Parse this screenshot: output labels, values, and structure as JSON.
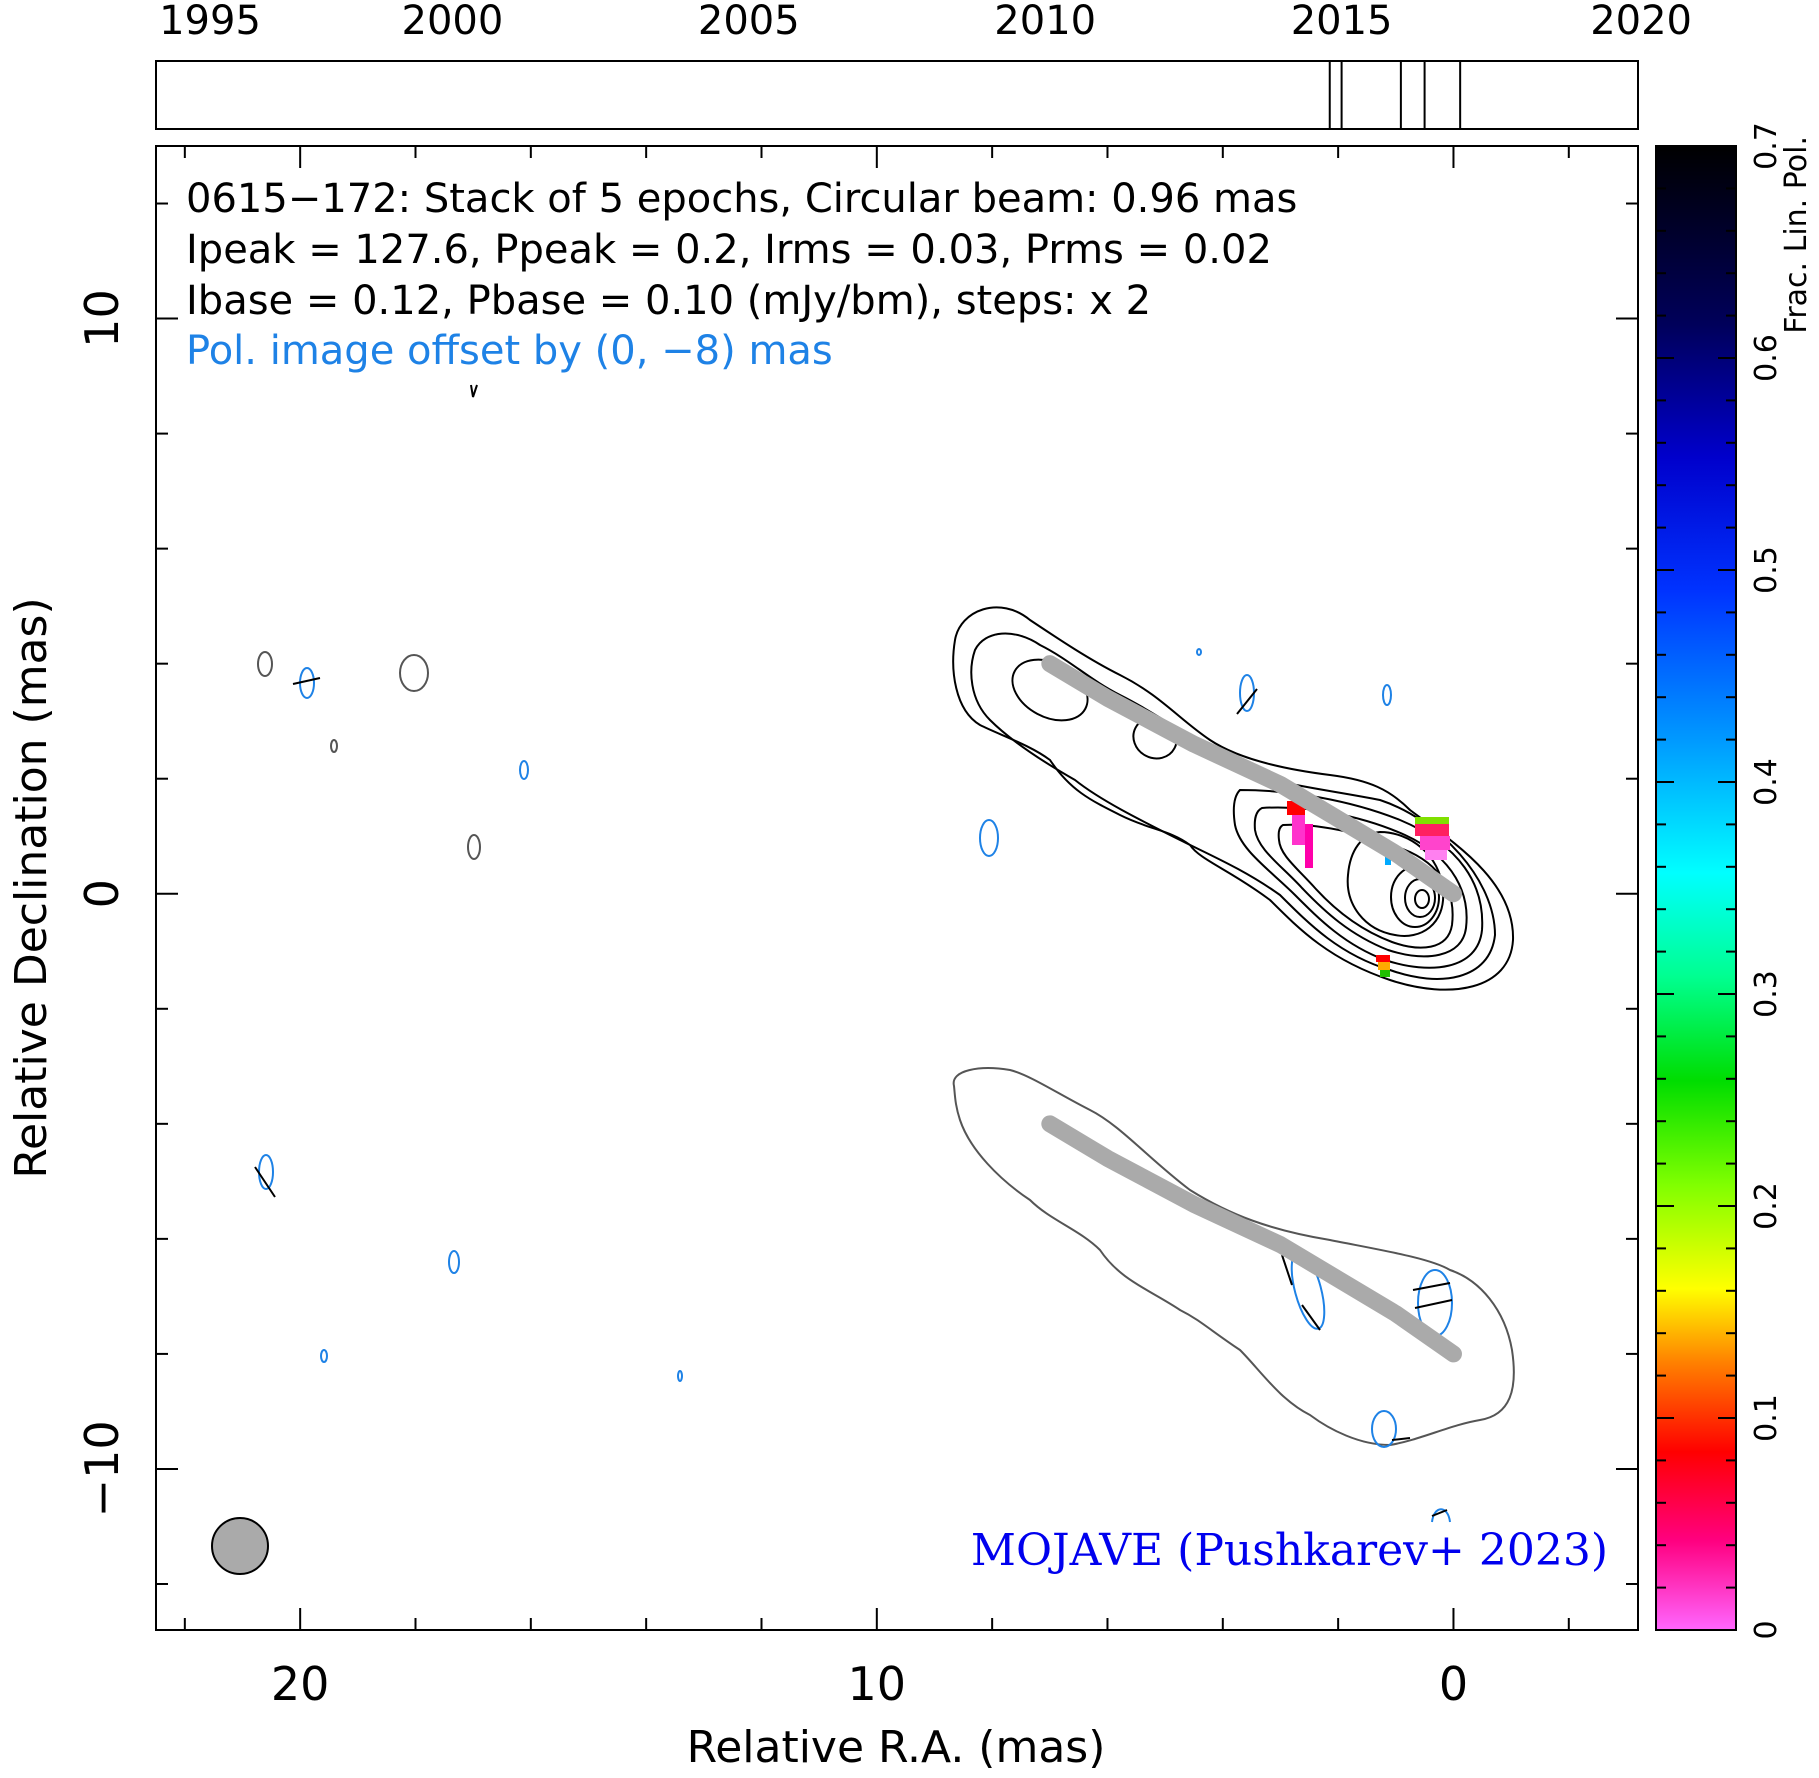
{
  "chart_data": {
    "type": "contour",
    "source": "0615−172",
    "header_lines": [
      "0615−172: Stack of 5 epochs, Circular beam: 0.96 mas",
      "Ipeak = 127.6, Ppeak = 0.2, Irms = 0.03, Prms = 0.02",
      "Ibase = 0.12, Pbase = 0.10 (mJy/bm), steps: x 2"
    ],
    "offset_note": "Pol. image offset by (0, −8) mas",
    "credit": "MOJAVE (Pushkarev+ 2023)",
    "xlabel": "Relative R.A. (mas)",
    "ylabel": "Relative Declination (mas)",
    "xlim": [
      22.5,
      -3.2
    ],
    "ylim": [
      -12.8,
      13.0
    ],
    "x_ticks": [
      20,
      10,
      0
    ],
    "x_tick_labels": [
      "20",
      "10",
      "0"
    ],
    "y_ticks": [
      10,
      0,
      -10
    ],
    "y_tick_labels": [
      "10",
      "0",
      "−10"
    ],
    "timeline": {
      "range": [
        1995,
        2020
      ],
      "tick_labels": [
        "1995",
        "2000",
        "2005",
        "2010",
        "2015",
        "2020"
      ],
      "epochs": [
        2014.8,
        2015.0,
        2016.0,
        2016.4,
        2017.0
      ]
    },
    "colorbar": {
      "label": "Frac. Lin. Pol.",
      "range": [
        0,
        0.7
      ],
      "tick_labels": [
        "0",
        "0.1",
        "0.2",
        "0.3",
        "0.4",
        "0.5",
        "0.6",
        "0.7"
      ]
    },
    "beam_mas": 0.96,
    "ridge_line": [
      [
        7.0,
        4.0
      ],
      [
        6.0,
        3.4
      ],
      [
        4.5,
        2.6
      ],
      [
        3.0,
        1.9
      ],
      [
        2.0,
        1.3
      ],
      [
        1.0,
        0.7
      ],
      [
        0.0,
        0.0
      ]
    ],
    "pol_ridge_line": [
      [
        7.0,
        -4.0
      ],
      [
        6.0,
        -4.6
      ],
      [
        4.5,
        -5.4
      ],
      [
        3.0,
        -6.1
      ],
      [
        2.0,
        -6.7
      ],
      [
        1.0,
        -7.3
      ],
      [
        0.0,
        -8.0
      ]
    ]
  },
  "colors": {
    "contour": "#000000",
    "pol_contour": "#1e82e6",
    "ridge": "#aaaaaa",
    "beam": "#aaaaaa",
    "offset_note": "#1e82e6",
    "credit": "#0000ee"
  }
}
